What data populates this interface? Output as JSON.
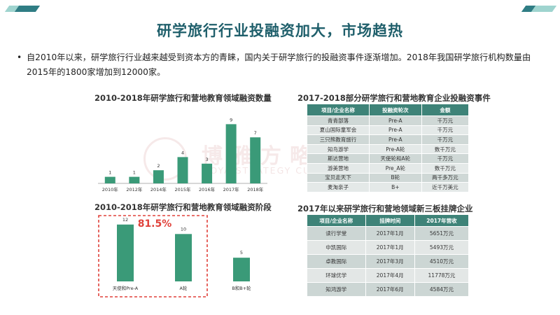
{
  "slide": {
    "title": "研学旅行行业投融资加大，市场趋热",
    "bullet": "自2010年以来，研学旅行行业越来越受到资本方的青睐，国内关于研学旅行的投融资事件逐渐增加。2018年我国研学旅行机构数量由2015年的1800家增加到12000家。",
    "bullet_mark": "•",
    "watermark_cn": "博雅方略研旅集团",
    "watermark_en": "BOYA STRATEGY CULTURAL TOURISM GROUP"
  },
  "colors": {
    "teal": "#3e8378",
    "dark_teal": "#1f5f6b",
    "green_bar": "#3a9a78",
    "accent_red": "#e0413a",
    "corner_light": "#9fd4cf",
    "corner_dark": "#2f7d84"
  },
  "chart_data": [
    {
      "type": "bar",
      "title": "2010-2018年研学旅行和营地教育领域融资数量",
      "categories": [
        "2010年",
        "2012年",
        "2014年",
        "2015年",
        "2016年",
        "2017年",
        "2018年"
      ],
      "values": [
        1,
        1,
        2,
        4,
        3,
        9,
        7
      ],
      "ylim": [
        0,
        10
      ],
      "grid": false,
      "data_labels": true
    },
    {
      "type": "bar",
      "title": "2010-2018年研学旅行和营地教育领域融资阶段",
      "categories": [
        "天使和Pre-A",
        "A轮",
        "B和B+轮"
      ],
      "values": [
        12,
        10,
        5
      ],
      "ylim": [
        0,
        13
      ],
      "grid": false,
      "data_labels": true,
      "annotation": "81.5%"
    },
    {
      "type": "table",
      "title": "2017-2018部分研学旅行和营地教育企业投融资事件",
      "columns": [
        "项目/企业名称",
        "投融资轮次",
        "金额"
      ],
      "rows": [
        [
          "青青部落",
          "Pre-A",
          "千万元"
        ],
        [
          "夏山国际童军会",
          "Pre-A",
          "千万元"
        ],
        [
          "三只熊教育旅行",
          "Pre-A",
          "千万元"
        ],
        [
          "知鸟游学",
          "Pre-A轮",
          "数千万元"
        ],
        [
          "斯达营地",
          "天使轮和A轮",
          "千万元"
        ],
        [
          "游美营地",
          "Pre_A轮",
          "数千万元"
        ],
        [
          "宝贝走天下",
          "B轮",
          "两千多万元"
        ],
        [
          "麦淘亲子",
          "B+",
          "近千万美元"
        ]
      ]
    },
    {
      "type": "table",
      "title": "2017年以来研学旅行和营地领域新三板挂牌企业",
      "columns": [
        "项目/企业名称",
        "挂牌时间",
        "2017年营收"
      ],
      "rows": [
        [
          "读行学堂",
          "2017年1月",
          "5651万元"
        ],
        [
          "中凯国际",
          "2017年1月",
          "5493万元"
        ],
        [
          "卓教国际",
          "2017年3月",
          "4510万元"
        ],
        [
          "环球优学",
          "2017年4月",
          "11778万元"
        ],
        [
          "知鸿游学",
          "2017年6月",
          "4584万元"
        ]
      ]
    }
  ]
}
